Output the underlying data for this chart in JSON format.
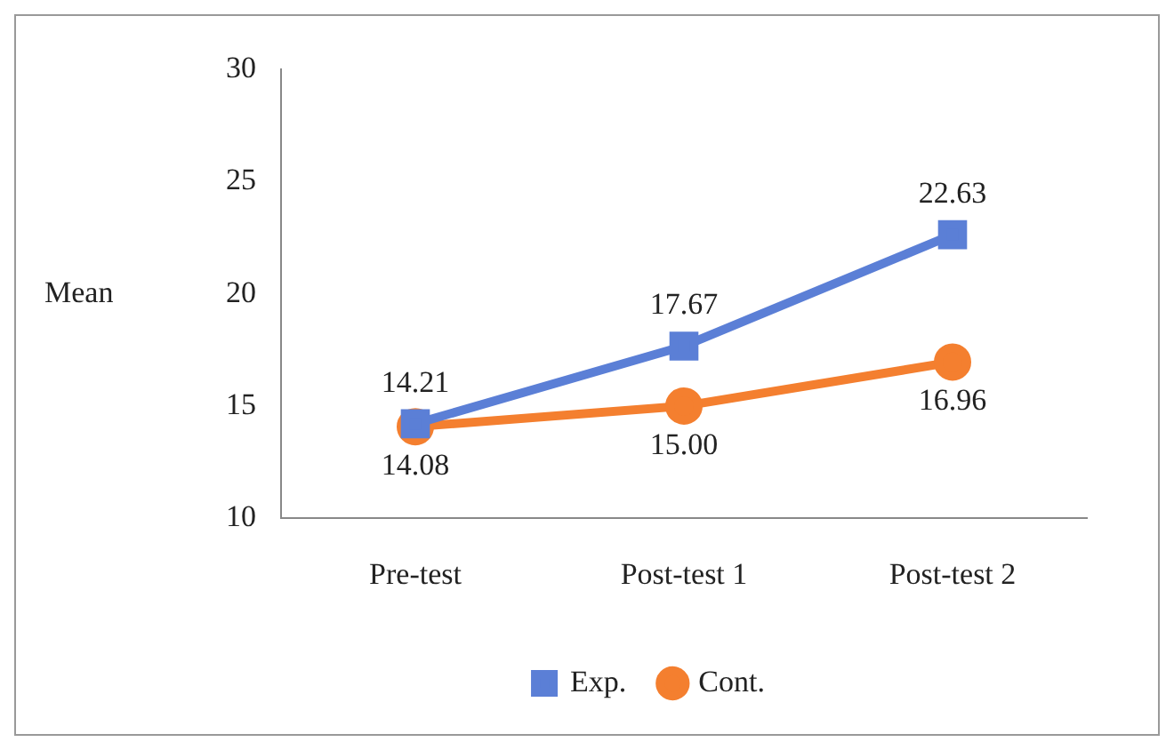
{
  "chart_data": {
    "type": "line",
    "ylabel": "Mean",
    "categories": [
      "Pre-test",
      "Post-test 1",
      "Post-test 2"
    ],
    "series": [
      {
        "name": "Exp.",
        "color": "#5b7fd6",
        "marker": "square",
        "values": [
          14.21,
          17.67,
          22.63
        ],
        "value_labels": [
          "14.21",
          "17.67",
          "22.63"
        ]
      },
      {
        "name": "Cont.",
        "color": "#f47f2f",
        "marker": "circle",
        "values": [
          14.08,
          15.0,
          16.96
        ],
        "value_labels": [
          "14.08",
          "15.00",
          "16.96"
        ]
      }
    ],
    "ylim": [
      10,
      30
    ],
    "yticks": [
      10,
      15,
      20,
      25,
      30
    ],
    "grid": false,
    "legend": "bottom",
    "line_style": "solid"
  }
}
